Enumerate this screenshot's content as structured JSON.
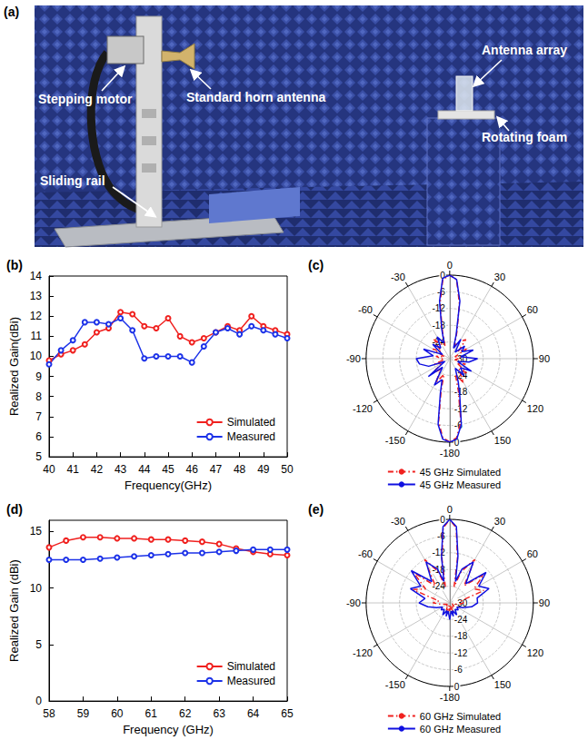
{
  "photo": {
    "panel": "(a)",
    "labels": [
      "Stepping motor",
      "Standard horn antenna",
      "Sliding rail",
      "Antenna array",
      "Rotating foam"
    ]
  },
  "chart_data": [
    {
      "panel": "(b)",
      "type": "line",
      "xlabel": "Frequency(GHz)",
      "ylabel": "Realized Gain(dBi)",
      "x": [
        40,
        40.5,
        41,
        41.5,
        42,
        42.5,
        43,
        43.5,
        44,
        44.5,
        45,
        45.5,
        46,
        46.5,
        47,
        47.5,
        48,
        48.5,
        49,
        49.5,
        50
      ],
      "xlim": [
        40,
        50
      ],
      "xticks": [
        40,
        41,
        42,
        43,
        44,
        45,
        46,
        47,
        48,
        49,
        50
      ],
      "ylim": [
        5,
        14
      ],
      "yticks": [
        5,
        6,
        7,
        8,
        9,
        10,
        11,
        12,
        13,
        14
      ],
      "grid": false,
      "legend": "lower right",
      "series": [
        {
          "name": "Simulated",
          "color": "#f0211f",
          "marker": "circle",
          "line_style": "solid",
          "values": [
            9.8,
            10.1,
            10.3,
            10.6,
            11.2,
            11.4,
            12.2,
            12.1,
            11.5,
            11.4,
            11.9,
            11.0,
            10.7,
            10.9,
            11.2,
            11.5,
            11.3,
            12.0,
            11.5,
            11.3,
            11.1
          ]
        },
        {
          "name": "Measured",
          "color": "#1c32e8",
          "marker": "circle",
          "line_style": "solid",
          "values": [
            9.6,
            10.3,
            10.8,
            11.7,
            11.7,
            11.6,
            11.9,
            11.3,
            9.9,
            10.0,
            10.0,
            10.0,
            9.7,
            10.5,
            11.2,
            11.4,
            11.1,
            11.5,
            11.3,
            11.1,
            10.9
          ]
        }
      ]
    },
    {
      "panel": "(c)",
      "type": "polar",
      "x": [
        -180,
        -175,
        -170,
        -165,
        -160,
        -150,
        -140,
        -130,
        -120,
        -110,
        -100,
        -90,
        -80,
        -70,
        -60,
        -50,
        -40,
        -30,
        -20,
        -15,
        -10,
        -5,
        0,
        5,
        10,
        15,
        20,
        30,
        40,
        50,
        60,
        70,
        80,
        90,
        100,
        110,
        120,
        130,
        140,
        150,
        160,
        165,
        170,
        175,
        180
      ],
      "xlim": [
        -180,
        180
      ],
      "xticks": [
        -180,
        -150,
        -120,
        -90,
        -60,
        -30,
        0,
        30,
        60,
        90,
        120,
        150
      ],
      "ylim": [
        -30,
        0
      ],
      "yticks": [
        -30,
        -24,
        -18,
        -12,
        -6,
        0
      ],
      "grid": true,
      "legend": "bottom",
      "series": [
        {
          "name": "45 GHz Simulated",
          "color": "#f0211f",
          "line_style": "dashdot",
          "values": [
            0,
            -1.5,
            -7,
            -18,
            -24,
            -20,
            -25,
            -22,
            -27,
            -24,
            -28,
            -27,
            -25,
            -28,
            -23,
            -26,
            -21,
            -24,
            -25,
            -20,
            -10,
            -1.5,
            0,
            -1.5,
            -10,
            -20,
            -25,
            -23,
            -21,
            -26,
            -23,
            -28,
            -26,
            -27,
            -28,
            -24,
            -27,
            -22,
            -25,
            -20,
            -24,
            -18,
            -7,
            -1.5,
            0
          ]
        },
        {
          "name": "45 GHz Measured",
          "color": "#1010e0",
          "line_style": "solid",
          "values": [
            0,
            -1,
            -6,
            -17,
            -22,
            -19,
            -26,
            -20,
            -28,
            -22,
            -19,
            -18,
            -24,
            -20,
            -27,
            -22,
            -25,
            -21,
            -24,
            -19,
            -9,
            -1,
            0,
            -1.5,
            -9,
            -21,
            -26,
            -22,
            -27,
            -23,
            -25,
            -21,
            -26,
            -20,
            -23,
            -27,
            -21,
            -25,
            -22,
            -26,
            -21,
            -16,
            -6,
            -1,
            0
          ]
        }
      ]
    },
    {
      "panel": "(d)",
      "type": "line",
      "xlabel": "Frequency (GHz)",
      "ylabel": "Realized Gain (dBi)",
      "x": [
        58,
        58.5,
        59,
        59.5,
        60,
        60.5,
        61,
        61.5,
        62,
        62.5,
        63,
        63.5,
        64,
        64.5,
        65
      ],
      "xlim": [
        58,
        65
      ],
      "xticks": [
        58,
        59,
        60,
        61,
        62,
        63,
        64,
        65
      ],
      "ylim": [
        0,
        16
      ],
      "yticks": [
        0,
        5,
        10,
        15
      ],
      "grid": false,
      "legend": "lower right",
      "series": [
        {
          "name": "Simulated",
          "color": "#f0211f",
          "marker": "circle",
          "line_style": "solid",
          "values": [
            13.6,
            14.2,
            14.5,
            14.5,
            14.4,
            14.4,
            14.3,
            14.3,
            14.2,
            14.1,
            13.9,
            13.5,
            13.2,
            13.0,
            12.9
          ]
        },
        {
          "name": "Measured",
          "color": "#1c32e8",
          "marker": "circle",
          "line_style": "solid",
          "values": [
            12.5,
            12.5,
            12.5,
            12.6,
            12.7,
            12.8,
            12.9,
            13.0,
            13.1,
            13.1,
            13.2,
            13.3,
            13.4,
            13.4,
            13.4
          ]
        }
      ]
    },
    {
      "panel": "(e)",
      "type": "polar",
      "x": [
        -180,
        -175,
        -170,
        -165,
        -160,
        -150,
        -140,
        -130,
        -120,
        -110,
        -100,
        -90,
        -80,
        -70,
        -60,
        -50,
        -40,
        -30,
        -20,
        -15,
        -10,
        -5,
        0,
        5,
        10,
        15,
        20,
        30,
        40,
        50,
        60,
        70,
        80,
        90,
        100,
        110,
        120,
        130,
        140,
        150,
        160,
        165,
        170,
        175,
        180
      ],
      "xlim": [
        -180,
        180
      ],
      "xticks": [
        -180,
        -150,
        -120,
        -90,
        -60,
        -30,
        0,
        30,
        60,
        90,
        120,
        150
      ],
      "ylim": [
        -30,
        0
      ],
      "yticks": [
        -30,
        -24,
        -18,
        -12,
        -6,
        0
      ],
      "grid": true,
      "legend": "bottom",
      "series": [
        {
          "name": "60 GHz Simulated",
          "color": "#f0211f",
          "line_style": "dashdot",
          "values": [
            -28,
            -27,
            -29,
            -28,
            -27,
            -28,
            -29,
            -28,
            -29,
            -29,
            -27,
            -24,
            -26,
            -16,
            -20,
            -13,
            -22,
            -12,
            -18,
            -24,
            -14,
            -3,
            0,
            -3,
            -14,
            -24,
            -18,
            -12,
            -22,
            -14,
            -20,
            -17,
            -26,
            -25,
            -27,
            -29,
            -29,
            -28,
            -29,
            -28,
            -27,
            -28,
            -29,
            -27,
            -28
          ]
        },
        {
          "name": "60 GHz Measured",
          "color": "#1010e0",
          "line_style": "solid",
          "values": [
            -24,
            -26,
            -27,
            -25,
            -27,
            -25,
            -27,
            -26,
            -27,
            -25,
            -22,
            -19,
            -21,
            -15,
            -18,
            -12,
            -20,
            -13,
            -17,
            -22,
            -13,
            -2.5,
            0,
            -2.5,
            -13,
            -22,
            -17,
            -13,
            -21,
            -13,
            -18,
            -15,
            -20,
            -20,
            -22,
            -25,
            -27,
            -26,
            -27,
            -25,
            -27,
            -25,
            -27,
            -26,
            -24
          ]
        }
      ]
    }
  ]
}
